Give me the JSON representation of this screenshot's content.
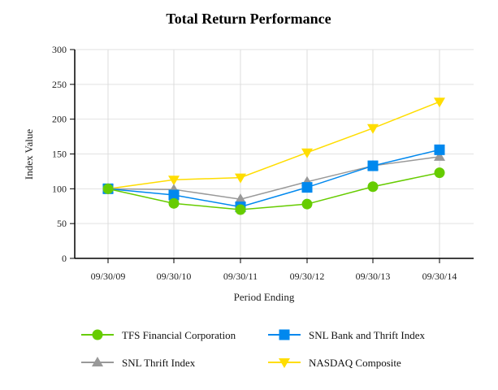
{
  "chart_data": {
    "type": "line",
    "title": "Total Return Performance",
    "xlabel": "Period Ending",
    "ylabel": "Index Value",
    "categories": [
      "09/30/09",
      "09/30/10",
      "09/30/11",
      "09/30/12",
      "09/30/13",
      "09/30/14"
    ],
    "ylim": [
      0,
      300
    ],
    "yticks": [
      0,
      50,
      100,
      150,
      200,
      250,
      300
    ],
    "grid": true,
    "legend_position": "bottom",
    "series": [
      {
        "name": "TFS Financial Corporation",
        "color": "#66cc00",
        "marker": "circle",
        "values": [
          100,
          79,
          70,
          78,
          103,
          123
        ]
      },
      {
        "name": "SNL Bank and Thrift Index",
        "color": "#0088ee",
        "marker": "square",
        "values": [
          100,
          91,
          74,
          102,
          133,
          156
        ]
      },
      {
        "name": "SNL Thrift Index",
        "color": "#999999",
        "marker": "triangle-up",
        "values": [
          100,
          99,
          85,
          110,
          133,
          146
        ]
      },
      {
        "name": "NASDAQ Composite",
        "color": "#ffdd00",
        "marker": "triangle-down",
        "values": [
          100,
          113,
          116,
          152,
          187,
          225
        ]
      }
    ]
  }
}
